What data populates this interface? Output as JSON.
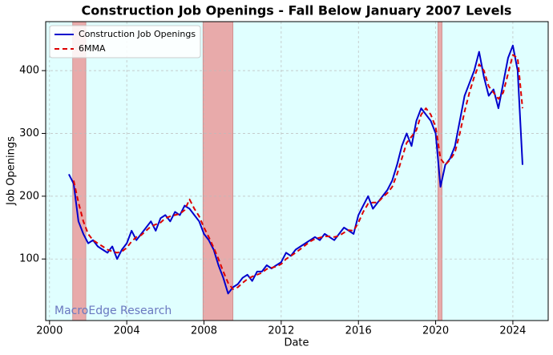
{
  "chart_data": {
    "type": "line",
    "title": "Construction Job Openings - Fall Below January 2007 Levels",
    "xlabel": "Date",
    "ylabel": "Job Openings",
    "watermark": "MacroEdge Research",
    "x": [
      2001.0,
      2001.25,
      2001.5,
      2001.75,
      2002.0,
      2002.25,
      2002.5,
      2002.75,
      2003.0,
      2003.25,
      2003.5,
      2003.75,
      2004.0,
      2004.25,
      2004.5,
      2004.75,
      2005.0,
      2005.25,
      2005.5,
      2005.75,
      2006.0,
      2006.25,
      2006.5,
      2006.75,
      2007.0,
      2007.25,
      2007.5,
      2007.75,
      2008.0,
      2008.25,
      2008.5,
      2008.75,
      2009.0,
      2009.25,
      2009.5,
      2009.75,
      2010.0,
      2010.25,
      2010.5,
      2010.75,
      2011.0,
      2011.25,
      2011.5,
      2011.75,
      2012.0,
      2012.25,
      2012.5,
      2012.75,
      2013.0,
      2013.25,
      2013.5,
      2013.75,
      2014.0,
      2014.25,
      2014.5,
      2014.75,
      2015.0,
      2015.25,
      2015.5,
      2015.75,
      2016.0,
      2016.25,
      2016.5,
      2016.75,
      2017.0,
      2017.25,
      2017.5,
      2017.75,
      2018.0,
      2018.25,
      2018.5,
      2018.75,
      2019.0,
      2019.25,
      2019.5,
      2019.75,
      2020.0,
      2020.25,
      2020.5,
      2020.75,
      2021.0,
      2021.25,
      2021.5,
      2021.75,
      2022.0,
      2022.25,
      2022.5,
      2022.75,
      2023.0,
      2023.25,
      2023.5,
      2023.75,
      2024.0,
      2024.25,
      2024.5
    ],
    "series": [
      {
        "name": "Construction Job Openings",
        "color": "#0000cc",
        "dash": false,
        "values": [
          235,
          220,
          160,
          140,
          125,
          130,
          120,
          115,
          110,
          120,
          100,
          115,
          125,
          145,
          130,
          140,
          150,
          160,
          145,
          165,
          170,
          160,
          175,
          170,
          185,
          180,
          170,
          160,
          140,
          130,
          115,
          90,
          70,
          45,
          55,
          60,
          70,
          75,
          65,
          80,
          80,
          90,
          85,
          90,
          95,
          110,
          105,
          115,
          120,
          125,
          130,
          135,
          130,
          140,
          135,
          130,
          140,
          150,
          145,
          140,
          170,
          185,
          200,
          180,
          190,
          200,
          210,
          225,
          250,
          280,
          300,
          280,
          320,
          340,
          330,
          320,
          300,
          215,
          250,
          260,
          280,
          320,
          360,
          380,
          400,
          430,
          390,
          360,
          370,
          340,
          380,
          420,
          440,
          400,
          250
        ]
      },
      {
        "name": "6MMA",
        "color": "#dd0000",
        "dash": true,
        "values": [
          null,
          225,
          190,
          160,
          140,
          130,
          125,
          120,
          115,
          112,
          110,
          112,
          118,
          128,
          135,
          138,
          145,
          152,
          155,
          158,
          165,
          168,
          170,
          172,
          178,
          195,
          180,
          168,
          150,
          135,
          118,
          100,
          80,
          62,
          52,
          55,
          62,
          68,
          72,
          75,
          78,
          84,
          86,
          88,
          92,
          100,
          105,
          110,
          116,
          122,
          128,
          132,
          134,
          136,
          136,
          135,
          137,
          142,
          146,
          145,
          158,
          175,
          188,
          190,
          190,
          198,
          205,
          215,
          235,
          260,
          285,
          295,
          305,
          330,
          340,
          330,
          310,
          260,
          250,
          258,
          270,
          300,
          335,
          365,
          390,
          410,
          400,
          375,
          365,
          355,
          365,
          395,
          425,
          420,
          340
        ]
      }
    ],
    "recessions": [
      [
        2001.2,
        2001.88
      ],
      [
        2007.95,
        2009.5
      ],
      [
        2020.12,
        2020.33
      ]
    ],
    "xlim": [
      1999.8,
      2025.83
    ],
    "ylim": [
      2,
      478
    ],
    "xticks": [
      2000,
      2004,
      2008,
      2012,
      2016,
      2020,
      2024
    ],
    "yticks": [
      100,
      200,
      300,
      400
    ],
    "grid": true,
    "legend": "upper left",
    "background": "#e0ffff",
    "recession_color": "#e8aaaa"
  }
}
